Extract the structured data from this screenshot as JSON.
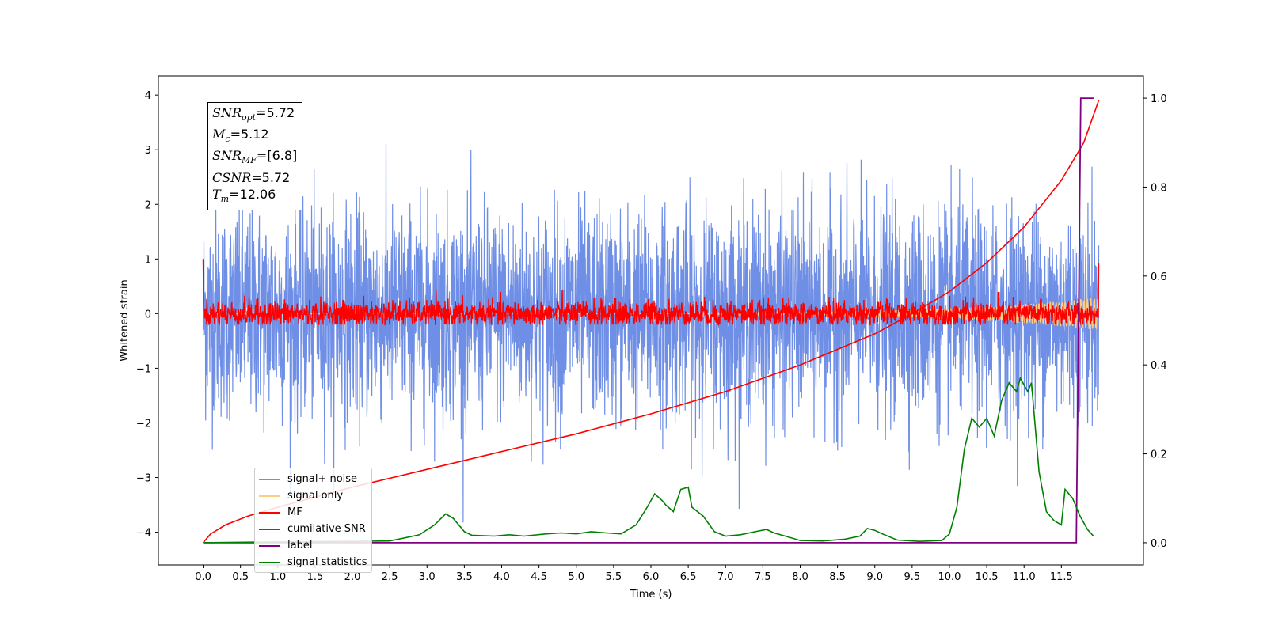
{
  "chart_data": {
    "type": "line",
    "xlabel": "Time (s)",
    "ylabel": "Whitened strain",
    "xlim": [
      -0.6,
      12.6
    ],
    "ylim": [
      -4.6,
      4.35
    ],
    "y2lim": [
      -0.05,
      1.05
    ],
    "x_ticks": [
      "0.0",
      "0.5",
      "1.0",
      "1.5",
      "2.0",
      "2.5",
      "3.0",
      "3.5",
      "4.0",
      "4.5",
      "5.0",
      "5.5",
      "6.0",
      "6.5",
      "7.0",
      "7.5",
      "8.0",
      "8.5",
      "9.0",
      "9.5",
      "10.0",
      "10.5",
      "11.0",
      "11.5"
    ],
    "y_ticks": [
      "4",
      "3",
      "2",
      "1",
      "0",
      "−1",
      "−2",
      "−3",
      "−4"
    ],
    "y2_ticks": [
      "1.0",
      "0.8",
      "0.6",
      "0.4",
      "0.2",
      "0.0"
    ],
    "annotation": {
      "snr_opt_label": "SNR",
      "snr_opt_sub": "opt",
      "snr_opt_value": "=5.72",
      "mc_label": "M",
      "mc_sub": "c",
      "mc_value": "=5.12",
      "snr_mf_label": "SNR",
      "snr_mf_sub": "MF",
      "snr_mf_value": "=[6.8]",
      "csnr_label": "CSNR",
      "csnr_value": "=5.72",
      "tm_label": "T",
      "tm_sub": "m",
      "tm_value": "=12.06"
    },
    "legend_position": "lower-left",
    "series": [
      {
        "name": "signal+ noise",
        "color": "#6f8fe6",
        "axis": "left",
        "kind": "noise",
        "x_range": [
          0,
          12.0
        ],
        "amplitude_std": 0.95
      },
      {
        "name": "signal only",
        "color": "#ffcc80",
        "axis": "left",
        "kind": "chirp",
        "x_range": [
          0,
          12.0
        ],
        "max_amplitude": 0.3
      },
      {
        "name": "MF",
        "color": "#ff0000",
        "axis": "left",
        "kind": "mf",
        "x_range": [
          0,
          12.0
        ],
        "start_value": 1.0,
        "end_value": 0.92,
        "amplitude_std": 0.12
      },
      {
        "name": "cumilative SNR",
        "color": "#ff0000",
        "axis": "right",
        "x": [
          0.0,
          0.1,
          0.3,
          0.6,
          1.0,
          2.0,
          3.0,
          4.0,
          5.0,
          6.0,
          7.0,
          8.0,
          9.0,
          9.5,
          10.0,
          10.5,
          11.0,
          11.5,
          11.8,
          12.0
        ],
        "y": [
          0.0,
          0.02,
          0.04,
          0.06,
          0.08,
          0.125,
          0.165,
          0.205,
          0.245,
          0.29,
          0.34,
          0.4,
          0.47,
          0.515,
          0.565,
          0.63,
          0.71,
          0.815,
          0.9,
          0.995
        ]
      },
      {
        "name": "label",
        "color": "#800080",
        "axis": "right",
        "x": [
          0.0,
          11.7,
          11.76,
          11.93
        ],
        "y": [
          0.0,
          0.0,
          1.0,
          1.0
        ]
      },
      {
        "name": "signal statistics",
        "color": "#008000",
        "axis": "right",
        "x": [
          0.0,
          1.0,
          2.0,
          2.5,
          2.9,
          3.1,
          3.25,
          3.35,
          3.5,
          3.6,
          3.9,
          4.1,
          4.3,
          4.6,
          4.8,
          5.0,
          5.2,
          5.4,
          5.6,
          5.8,
          5.95,
          6.05,
          6.15,
          6.2,
          6.3,
          6.4,
          6.5,
          6.55,
          6.7,
          6.85,
          7.0,
          7.2,
          7.4,
          7.55,
          7.65,
          7.8,
          8.0,
          8.3,
          8.6,
          8.8,
          8.9,
          9.0,
          9.1,
          9.3,
          9.6,
          9.9,
          10.0,
          10.1,
          10.2,
          10.3,
          10.4,
          10.5,
          10.6,
          10.7,
          10.8,
          10.9,
          10.95,
          11.05,
          11.1,
          11.2,
          11.3,
          11.4,
          11.5,
          11.55,
          11.65,
          11.75,
          11.85,
          11.93
        ],
        "y": [
          0.0,
          0.002,
          0.003,
          0.004,
          0.018,
          0.04,
          0.065,
          0.055,
          0.025,
          0.017,
          0.015,
          0.018,
          0.015,
          0.02,
          0.022,
          0.02,
          0.025,
          0.022,
          0.02,
          0.04,
          0.08,
          0.11,
          0.095,
          0.085,
          0.07,
          0.12,
          0.125,
          0.08,
          0.06,
          0.025,
          0.015,
          0.018,
          0.025,
          0.03,
          0.022,
          0.015,
          0.005,
          0.004,
          0.008,
          0.015,
          0.032,
          0.028,
          0.02,
          0.006,
          0.003,
          0.005,
          0.02,
          0.08,
          0.21,
          0.28,
          0.26,
          0.28,
          0.24,
          0.32,
          0.36,
          0.34,
          0.37,
          0.34,
          0.36,
          0.16,
          0.07,
          0.05,
          0.04,
          0.12,
          0.1,
          0.06,
          0.03,
          0.015
        ]
      }
    ]
  }
}
